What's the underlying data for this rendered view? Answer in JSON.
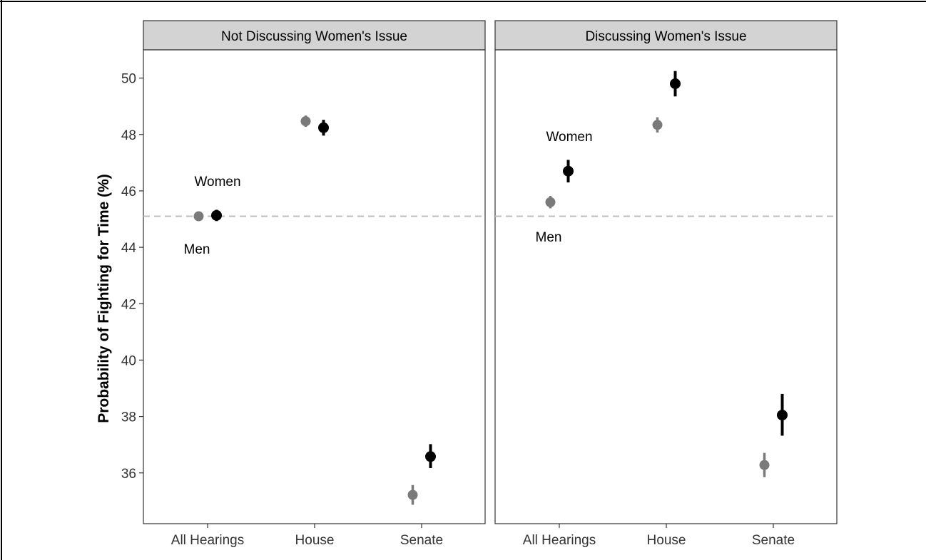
{
  "chart_data": {
    "type": "scatter",
    "ylabel": "Probability of Fighting for Time (%)",
    "xlabel": "",
    "categories": [
      "All Hearings",
      "House",
      "Senate"
    ],
    "ylim": [
      34.2,
      51
    ],
    "yticks": [
      36,
      38,
      40,
      42,
      44,
      46,
      48,
      50
    ],
    "reference_line": 45.1,
    "grid": false,
    "groups": [
      "Men",
      "Women"
    ],
    "colors": {
      "men": "#7a7a7a",
      "women": "#000000",
      "refline": "#bdbdbd",
      "strip": "#d3d3d3"
    },
    "panels": [
      {
        "title": "Not Discussing Women's Issue",
        "group_labels": {
          "women": "Women",
          "men": "Men"
        },
        "series": [
          {
            "group": "men",
            "values": [
              45.1,
              48.47,
              35.22
            ],
            "low": [
              45.02,
              48.27,
              34.87
            ],
            "high": [
              45.18,
              48.67,
              35.57
            ]
          },
          {
            "group": "women",
            "values": [
              45.13,
              48.24,
              36.58
            ],
            "low": [
              44.93,
              47.96,
              36.17
            ],
            "high": [
              45.33,
              48.52,
              37.02
            ]
          }
        ]
      },
      {
        "title": "Discussing Women's Issue",
        "group_labels": {
          "women": "Women",
          "men": "Men"
        },
        "series": [
          {
            "group": "men",
            "values": [
              45.6,
              48.34,
              36.28
            ],
            "low": [
              45.38,
              48.07,
              35.85
            ],
            "high": [
              45.82,
              48.61,
              36.71
            ]
          },
          {
            "group": "women",
            "values": [
              46.7,
              49.8,
              38.05
            ],
            "low": [
              46.3,
              49.35,
              37.32
            ],
            "high": [
              47.1,
              50.25,
              38.8
            ]
          }
        ]
      }
    ]
  }
}
